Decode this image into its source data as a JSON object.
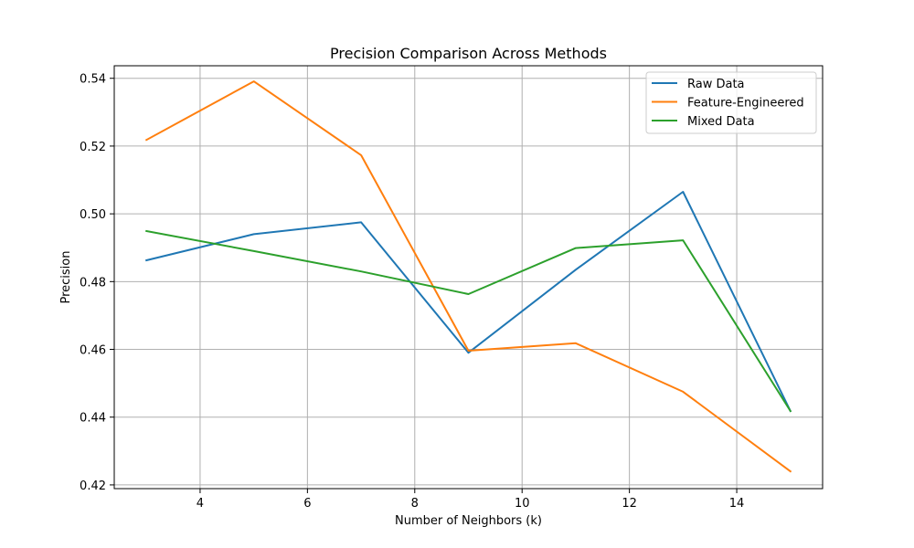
{
  "chart_data": {
    "type": "line",
    "title": "Precision Comparison Across Methods",
    "xlabel": "Number of Neighbors (k)",
    "ylabel": "Precision",
    "xlim": [
      2.4,
      15.6
    ],
    "ylim": [
      0.4189,
      0.5437
    ],
    "xticks": [
      4,
      6,
      8,
      10,
      12,
      14
    ],
    "yticks": [
      0.42,
      0.44,
      0.46,
      0.48,
      0.5,
      0.52,
      0.54
    ],
    "xtick_labels": [
      "4",
      "6",
      "8",
      "10",
      "12",
      "14"
    ],
    "ytick_labels": [
      "0.42",
      "0.44",
      "0.46",
      "0.48",
      "0.50",
      "0.52",
      "0.54"
    ],
    "grid": true,
    "legend_position": "top-right",
    "x": [
      3,
      5,
      7,
      9,
      11,
      13,
      15
    ],
    "series": [
      {
        "name": "Raw Data",
        "color": "#1f77b4",
        "values": [
          0.4863,
          0.494,
          0.4975,
          0.459,
          0.4835,
          0.5065,
          0.4418
        ]
      },
      {
        "name": "Feature-Engineered",
        "color": "#ff7f0e",
        "values": [
          0.5218,
          0.5391,
          0.5173,
          0.4596,
          0.4618,
          0.4475,
          0.424
        ]
      },
      {
        "name": "Mixed Data",
        "color": "#2ca02c",
        "values": [
          0.4949,
          0.489,
          0.483,
          0.4763,
          0.4899,
          0.4922,
          0.4418
        ]
      }
    ]
  }
}
